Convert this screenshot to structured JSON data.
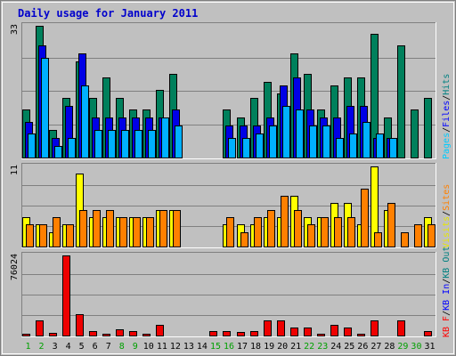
{
  "chart_data": {
    "type": "bar",
    "title": "Daily usage for January 2011",
    "days": [
      "1",
      "2",
      "3",
      "4",
      "5",
      "6",
      "7",
      "8",
      "9",
      "10",
      "11",
      "12",
      "13",
      "14",
      "15",
      "16",
      "17",
      "18",
      "19",
      "20",
      "21",
      "22",
      "23",
      "24",
      "25",
      "26",
      "27",
      "28",
      "29",
      "30",
      "31"
    ],
    "weekend_days": [
      "1",
      "2",
      "8",
      "9",
      "15",
      "16",
      "22",
      "23",
      "29",
      "30"
    ],
    "panels": [
      {
        "name": "hits-files-pages",
        "ymax": 33,
        "ymax_label": "33",
        "legend": [
          {
            "text": "Pages",
            "color": "#00ccff"
          },
          {
            "text": "/",
            "color": "#000000"
          },
          {
            "text": "Files",
            "color": "#0000ff"
          },
          {
            "text": "/",
            "color": "#000000"
          },
          {
            "text": "Hits",
            "color": "#008080"
          }
        ],
        "series": [
          {
            "name": "Hits",
            "color": "#00805c",
            "offset": 0,
            "values": [
              12,
              33,
              7,
              15,
              24,
              15,
              20,
              15,
              12,
              12,
              17,
              21,
              0,
              0,
              0,
              12,
              10,
              15,
              19,
              16,
              26,
              21,
              12,
              18,
              20,
              20,
              31,
              10,
              28,
              12,
              15
            ]
          },
          {
            "name": "Files",
            "color": "#0000e6",
            "offset": 3,
            "values": [
              9,
              28,
              5,
              13,
              26,
              10,
              10,
              10,
              10,
              10,
              10,
              12,
              0,
              0,
              0,
              8,
              8,
              8,
              10,
              18,
              20,
              12,
              10,
              10,
              13,
              13,
              5,
              5,
              0,
              0,
              0
            ]
          },
          {
            "name": "Pages",
            "color": "#00b0ff",
            "offset": 6,
            "values": [
              6,
              25,
              3,
              5,
              18,
              7,
              7,
              7,
              7,
              7,
              10,
              8,
              0,
              0,
              0,
              5,
              5,
              6,
              8,
              13,
              12,
              8,
              8,
              5,
              6,
              9,
              6,
              5,
              0,
              0,
              0
            ]
          }
        ]
      },
      {
        "name": "visits-sites",
        "ymax": 11,
        "ymax_label": "11",
        "legend": [
          {
            "text": "Visits",
            "color": "#e6e600"
          },
          {
            "text": "/",
            "color": "#000000"
          },
          {
            "text": "Sites",
            "color": "#ff8000"
          }
        ],
        "series": [
          {
            "name": "Visits",
            "color": "#ffff00",
            "offset": 0,
            "values": [
              4,
              3,
              2,
              3,
              10,
              4,
              4,
              4,
              4,
              4,
              5,
              5,
              0,
              0,
              0,
              3,
              3,
              3,
              4,
              4,
              7,
              4,
              4,
              6,
              6,
              3,
              11,
              5,
              0,
              0,
              4
            ]
          },
          {
            "name": "Sites",
            "color": "#ff8000",
            "offset": 4,
            "values": [
              3,
              3,
              4,
              3,
              5,
              5,
              5,
              4,
              4,
              4,
              5,
              5,
              0,
              0,
              0,
              4,
              2,
              4,
              5,
              7,
              5,
              3,
              4,
              4,
              4,
              8,
              2,
              6,
              2,
              3,
              3
            ]
          }
        ]
      },
      {
        "name": "kbytes",
        "ymax": 76024,
        "ymax_label": "76024",
        "legend": [
          {
            "text": "KB F",
            "color": "#ff0000"
          },
          {
            "text": "/",
            "color": "#000000"
          },
          {
            "text": "KB In",
            "color": "#0000ff"
          },
          {
            "text": "/",
            "color": "#000000"
          },
          {
            "text": "KB Out",
            "color": "#008080"
          }
        ],
        "series": [
          {
            "name": "KB F",
            "color": "#ee0000",
            "offset": 0,
            "values": [
              2000,
              14000,
              2500,
              76024,
              20000,
              4000,
              2000,
              6000,
              4000,
              2000,
              10000,
              0,
              0,
              0,
              4000,
              4000,
              3000,
              4000,
              14000,
              14000,
              8000,
              8000,
              2000,
              10000,
              8000,
              2000,
              14000,
              0,
              14000,
              0,
              4000
            ]
          }
        ]
      }
    ]
  }
}
